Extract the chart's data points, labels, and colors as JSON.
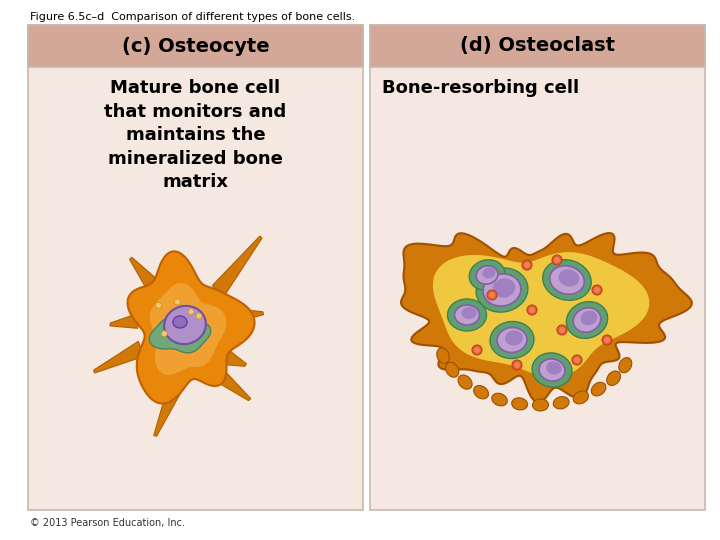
{
  "figure_title": "Figure 6.5c–d  Comparison of different types of bone cells.",
  "copyright": "© 2013 Pearson Education, Inc.",
  "panel_c_title": "(c) Osteocyte",
  "panel_d_title": "(d) Osteoclast",
  "panel_c_desc": "Mature bone cell\nthat monitors and\nmaintains the\nmineralized bone\nmatrix",
  "panel_d_desc": "Bone-resorbing cell",
  "header_bg": "#d4a898",
  "panel_bg": "#f5e8e0",
  "outer_bg": "#ffffff",
  "border_color": "#c8b8b0",
  "title_fontsize": 8,
  "header_fontsize": 14,
  "desc_fontsize": 13,
  "copyright_fontsize": 7,
  "cell_orange": "#e8870a",
  "cell_orange_light": "#f5b830",
  "cell_nucleus_purple": "#b090c0",
  "cell_nucleus_dark": "#8060a0",
  "cell_green": "#70a080"
}
